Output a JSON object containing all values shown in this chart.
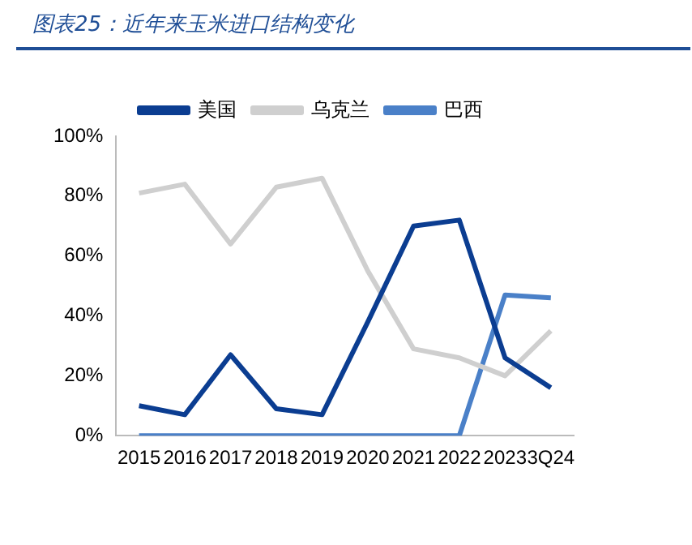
{
  "chart_data": {
    "type": "line",
    "title": "图表25：近年来玉米进口结构变化",
    "categories": [
      "2015",
      "2016",
      "2017",
      "2018",
      "2019",
      "2020",
      "2021",
      "2022",
      "2023",
      "3Q24"
    ],
    "series": [
      {
        "name": "美国",
        "color": "#0b3d91",
        "values": [
          10,
          7,
          27,
          9,
          7,
          38,
          70,
          72,
          26,
          16
        ]
      },
      {
        "name": "乌克兰",
        "color": "#cfcfcf",
        "values": [
          81,
          84,
          64,
          83,
          86,
          55,
          29,
          26,
          20,
          35
        ]
      },
      {
        "name": "巴西",
        "color": "#4a80c8",
        "values": [
          0,
          0,
          0,
          0,
          0,
          0,
          0,
          0,
          47,
          46
        ]
      }
    ],
    "ylim": [
      0,
      100
    ],
    "yticks": [
      {
        "value": 0,
        "label": "0%"
      },
      {
        "value": 20,
        "label": "20%"
      },
      {
        "value": 40,
        "label": "40%"
      },
      {
        "value": 60,
        "label": "60%"
      },
      {
        "value": 80,
        "label": "80%"
      },
      {
        "value": 100,
        "label": "100%"
      }
    ],
    "grid": false,
    "legend": "top",
    "marker": "none",
    "line_style": "solid"
  }
}
